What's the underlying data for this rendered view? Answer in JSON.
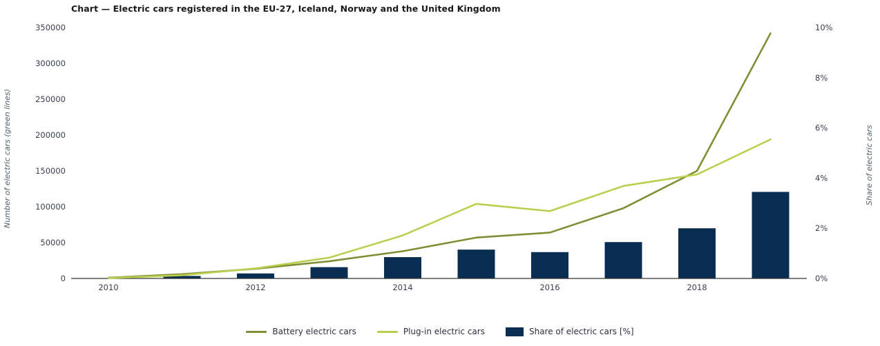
{
  "title": "Chart — Electric cars registered in the EU-27, Iceland, Norway and the United Kingdom",
  "chart_data": {
    "type": "combo-line-bar",
    "title": "Chart — Electric cars registered in the EU-27, Iceland, Norway and the United Kingdom",
    "x": [
      2010,
      2011,
      2012,
      2013,
      2014,
      2015,
      2016,
      2017,
      2018,
      2019
    ],
    "x_tick_labels": [
      "2010",
      "2012",
      "2014",
      "2016",
      "2018"
    ],
    "left_axis": {
      "label": "Number of electric cars (green lines)",
      "min": 0,
      "max": 350000,
      "tick_values": [
        0,
        50000,
        100000,
        150000,
        200000,
        250000,
        300000,
        350000
      ],
      "tick_labels": [
        "0",
        "50000",
        "100000",
        "150000",
        "200000",
        "250000",
        "300000",
        "350000"
      ]
    },
    "right_axis": {
      "label": "Share of electric cars",
      "min": 0,
      "max": 10,
      "tick_values": [
        0,
        2,
        4,
        6,
        8,
        10
      ],
      "tick_labels": [
        "0%",
        "2%",
        "4%",
        "6%",
        "8%",
        "10%"
      ]
    },
    "grid": false,
    "legend_position": "bottom",
    "series": [
      {
        "name": "Battery electric cars",
        "type": "line",
        "axis": "left",
        "color": "#7e8e35",
        "values": [
          1000,
          6000,
          13500,
          24000,
          38000,
          57000,
          64000,
          98000,
          150000,
          342000
        ]
      },
      {
        "name": "Plug-in electric cars",
        "type": "line",
        "axis": "left",
        "color": "#b9d04f",
        "values": [
          500,
          4500,
          14000,
          29000,
          60000,
          104000,
          94000,
          129000,
          145000,
          194000
        ]
      },
      {
        "name": "Share of electric cars [%]",
        "type": "bar",
        "axis": "right",
        "color": "#0a2d52",
        "values": [
          0,
          0.1,
          0.2,
          0.45,
          0.85,
          1.15,
          1.05,
          1.45,
          2.0,
          3.45
        ]
      }
    ]
  },
  "legend": {
    "items": [
      {
        "label": "Battery electric cars",
        "swatch": "line",
        "color": "#7e8e35"
      },
      {
        "label": "Plug-in electric cars",
        "swatch": "line",
        "color": "#b9d04f"
      },
      {
        "label": "Share of electric cars [%]",
        "swatch": "rect",
        "color": "#0a2d52"
      }
    ]
  }
}
